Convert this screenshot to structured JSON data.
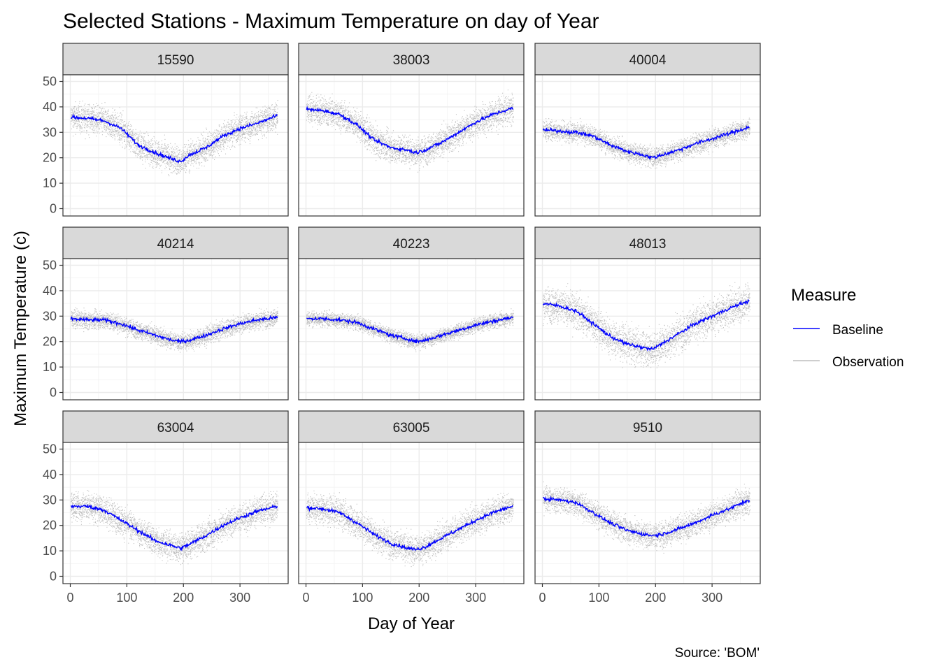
{
  "chart_data": {
    "type": "line",
    "title": "Selected Stations - Maximum Temperature on day of Year",
    "xlabel": "Day of Year",
    "ylabel": "Maximum Temperature (c)",
    "caption": "Source: 'BOM'",
    "xlim": [
      0,
      366
    ],
    "ylim": [
      0,
      50
    ],
    "x_ticks": [
      0,
      100,
      200,
      300
    ],
    "y_ticks": [
      0,
      10,
      20,
      30,
      40,
      50
    ],
    "grid": true,
    "legend": {
      "title": "Measure",
      "position": "right",
      "entries": [
        {
          "label": "Baseline",
          "color": "#0000ff"
        },
        {
          "label": "Observation",
          "color": "#bebebe"
        }
      ]
    },
    "series_x": [
      0,
      30,
      60,
      90,
      120,
      150,
      180,
      195,
      210,
      240,
      270,
      300,
      330,
      365
    ],
    "panels": [
      {
        "station": "15590",
        "baseline": [
          36,
          35.5,
          34.5,
          31.5,
          25,
          22,
          19.5,
          18.5,
          21,
          24,
          28.5,
          31.5,
          33.5,
          36.5
        ],
        "spread": 5
      },
      {
        "station": "38003",
        "baseline": [
          39,
          38.5,
          37,
          33,
          27,
          24,
          23,
          22,
          23,
          26,
          30,
          34,
          37,
          39.5
        ],
        "spread": 5
      },
      {
        "station": "40004",
        "baseline": [
          31,
          30.5,
          30,
          28.5,
          25,
          22.5,
          21,
          20,
          21,
          23,
          25.5,
          27.5,
          29.5,
          32
        ],
        "spread": 3.5
      },
      {
        "station": "40214",
        "baseline": [
          29,
          28.5,
          28.5,
          27,
          24.5,
          22.5,
          20.5,
          20,
          20.5,
          22.5,
          25,
          27,
          28.5,
          29.5
        ],
        "spread": 3
      },
      {
        "station": "40223",
        "baseline": [
          29,
          29,
          28.5,
          27.5,
          25,
          22.5,
          21,
          20,
          20.5,
          22.5,
          24.5,
          26.5,
          28,
          29.5
        ],
        "spread": 2.5
      },
      {
        "station": "48013",
        "baseline": [
          35,
          34,
          32,
          27,
          22,
          19,
          17.5,
          17,
          19,
          23,
          27,
          30,
          33,
          36
        ],
        "spread": 6
      },
      {
        "station": "63004",
        "baseline": [
          27.5,
          27.5,
          26,
          22,
          18,
          14,
          12,
          11,
          12.5,
          16,
          20,
          23,
          25.5,
          27.5
        ],
        "spread": 5
      },
      {
        "station": "63005",
        "baseline": [
          27,
          26.5,
          25,
          21,
          16.5,
          13,
          11,
          10.5,
          11.5,
          15,
          18.5,
          22,
          25,
          27.5
        ],
        "spread": 5
      },
      {
        "station": "9510",
        "baseline": [
          30.5,
          30,
          29,
          25,
          21,
          18,
          16.5,
          16,
          16.5,
          18.5,
          21,
          24,
          26.5,
          30
        ],
        "spread": 4.5
      }
    ]
  }
}
